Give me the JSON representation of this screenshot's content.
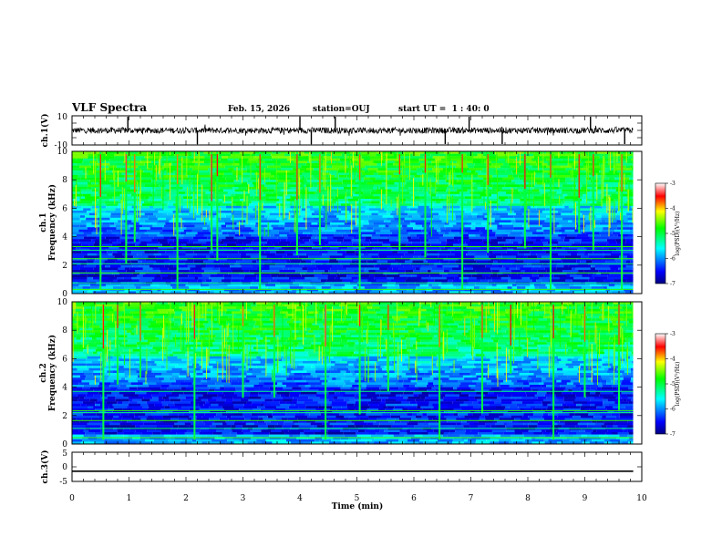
{
  "chart_data": {
    "type": "heatmap",
    "header": {
      "title": "VLF Spectra",
      "date": "Feb. 15, 2026",
      "station": "station=OUJ",
      "start_ut": "start UT =  1 : 40: 0"
    },
    "time_axis": {
      "label": "Time (min)",
      "range": [
        0,
        10
      ],
      "ticks": [
        "0",
        "1",
        "2",
        "3",
        "4",
        "5",
        "6",
        "7",
        "8",
        "9",
        "10"
      ],
      "data_end": 9.85
    },
    "panels": [
      {
        "id": "ch1-waveform",
        "type": "line",
        "ylabel": "ch.1(V)",
        "ylim": [
          -10,
          10
        ],
        "yticks": [
          "10",
          "-10"
        ],
        "baseline": 0,
        "spike_times": [
          0.98,
          2.2,
          4.0,
          4.2,
          4.62,
          6.55,
          6.97,
          7.55,
          9.1,
          9.7
        ]
      },
      {
        "id": "ch1-spectrogram",
        "type": "heatmap",
        "channel_label": "ch.1",
        "ylabel": "Frequency (kHz)",
        "ylim": [
          0,
          10
        ],
        "yticks": [
          "0",
          "2",
          "4",
          "6",
          "8",
          "10"
        ],
        "burst_times": [
          0.5,
          0.95,
          1.1,
          1.85,
          2.45,
          2.55,
          3.3,
          3.95,
          4.35,
          5.05,
          5.75,
          6.2,
          6.85,
          7.3,
          7.95,
          8.4,
          8.9,
          9.15,
          9.65
        ],
        "colorbar": {
          "label": "log(PSD)(V²/Hz)",
          "range": [
            -7,
            -3
          ],
          "ticks": [
            "-3",
            "-4",
            "-5",
            "-6",
            "-7"
          ]
        }
      },
      {
        "id": "ch2-spectrogram",
        "type": "heatmap",
        "channel_label": "ch.2",
        "ylabel": "Frequency (kHz)",
        "ylim": [
          0,
          10
        ],
        "yticks": [
          "0",
          "2",
          "4",
          "6",
          "8",
          "10"
        ],
        "burst_times": [
          0.55,
          0.8,
          1.2,
          2.15,
          3.0,
          3.55,
          4.45,
          5.05,
          5.55,
          6.45,
          7.2,
          7.7,
          8.45,
          9.0,
          9.6
        ],
        "colorbar": {
          "label": "log(PSD)(V²/Hz)",
          "range": [
            -7,
            -3
          ],
          "ticks": [
            "-3",
            "-4",
            "-5",
            "-6",
            "-7"
          ]
        }
      },
      {
        "id": "ch3-waveform",
        "type": "line",
        "ylabel": "ch.3(V)",
        "ylim": [
          -5,
          5
        ],
        "yticks": [
          "5",
          "0",
          "-5"
        ],
        "baseline": -1.5
      }
    ]
  }
}
